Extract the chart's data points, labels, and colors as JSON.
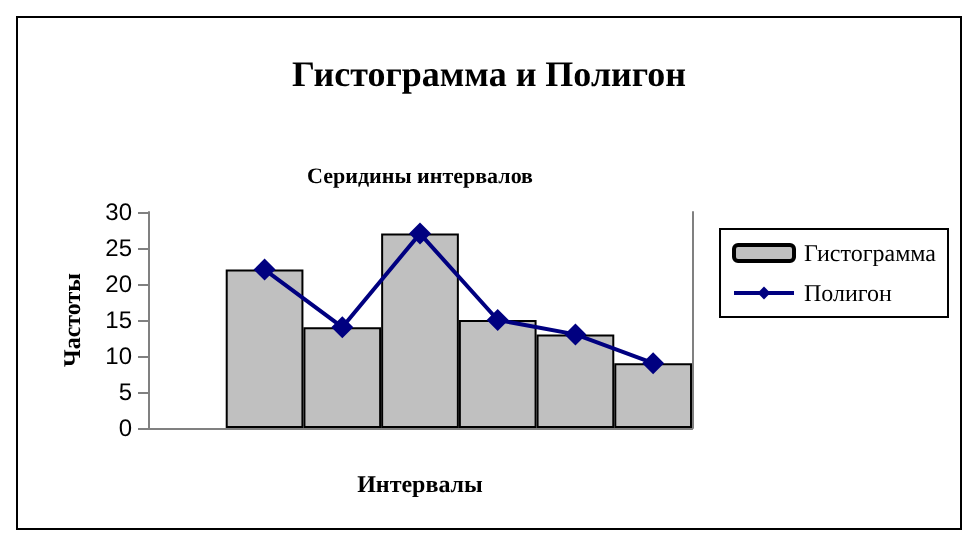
{
  "chart_data": {
    "type": "bar",
    "title": "Гистограмма и Полигон",
    "x2label": "Серидины интервалов",
    "xlabel": "Интервалы",
    "ylabel": "Частоты",
    "categories": [
      null,
      null,
      null,
      null,
      null,
      null,
      null
    ],
    "ylim": [
      0,
      30
    ],
    "yticks": [
      0,
      5,
      10,
      15,
      20,
      25,
      30
    ],
    "grid": false,
    "legend": "right",
    "series": [
      {
        "name": "Гистограмма",
        "color": "#c0c0c0",
        "values": [
          null,
          22,
          14,
          27,
          15,
          13,
          9
        ]
      },
      {
        "name": "Полигон",
        "type": "line",
        "color": "#000080",
        "marker": "diamond",
        "values": [
          null,
          22,
          14,
          27,
          15,
          13,
          9
        ]
      }
    ]
  }
}
